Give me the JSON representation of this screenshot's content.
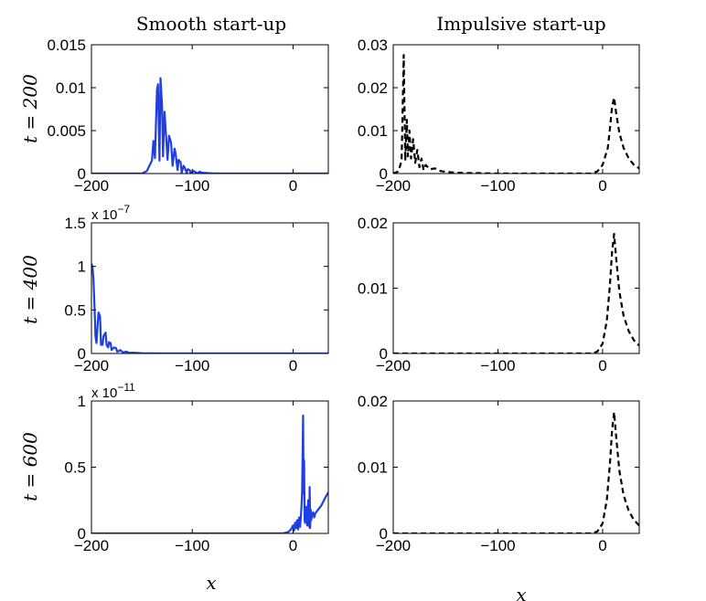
{
  "column_titles": [
    "Smooth start-up",
    "Impulsive start-up"
  ],
  "row_labels": [
    "t = 200",
    "t = 400",
    "t = 600"
  ],
  "x_axis_label": "x",
  "chart_data": [
    {
      "type": "line",
      "row": 0,
      "col": 0,
      "xlim": [
        -200,
        35
      ],
      "ylim": [
        0,
        0.015
      ],
      "yticks": [
        0,
        0.005,
        0.01,
        0.015
      ],
      "ytick_labels": [
        "0",
        "0.005",
        "0.01",
        "0.015"
      ],
      "xticks": [
        -200,
        -100,
        0
      ],
      "xtick_labels": [
        "−200",
        "−100",
        "0"
      ],
      "exponent": "",
      "series": [
        {
          "color": "#1f3fe0",
          "style": "solid",
          "x": [
            -200,
            -150,
            -145,
            -140,
            -138.5,
            -137,
            -135,
            -134,
            -132.5,
            -131.5,
            -130,
            -129,
            -127.5,
            -126.5,
            -124.5,
            -123,
            -121,
            -119.5,
            -117.5,
            -116.5,
            -114.5,
            -113.5,
            -111.5,
            -110.5,
            -108.5,
            -107.5,
            -105.5,
            -104.5,
            -102.5,
            -101.5,
            -99,
            -97,
            -95,
            -93,
            -90,
            -85,
            -80,
            -75,
            -70,
            0,
            35
          ],
          "y": [
            0,
            0,
            0.0003,
            0.0015,
            0.0038,
            0.0018,
            0.0097,
            0.0104,
            0.0015,
            0.0111,
            0.008,
            0.002,
            0.0072,
            0.0054,
            0.0016,
            0.0044,
            0.0036,
            0.0009,
            0.0029,
            0.0023,
            0.0004,
            0.0016,
            0.0013,
            0.0001,
            0.0009,
            0.0007,
            0.0001,
            0.0005,
            0.0004,
            0.0,
            0.0003,
            0.0002,
            0.0,
            0.0002,
            0.0001,
            5e-05,
            2e-05,
            1e-05,
            0,
            0,
            0
          ]
        }
      ]
    },
    {
      "type": "line",
      "row": 0,
      "col": 1,
      "xlim": [
        -200,
        35
      ],
      "ylim": [
        0,
        0.03
      ],
      "yticks": [
        0,
        0.01,
        0.02,
        0.03
      ],
      "ytick_labels": [
        "0",
        "0.01",
        "0.02",
        "0.03"
      ],
      "xticks": [
        -200,
        -100,
        0
      ],
      "xtick_labels": [
        "−200",
        "−100",
        "0"
      ],
      "exponent": "",
      "series": [
        {
          "color": "#000000",
          "style": "dashed",
          "x": [
            -200,
            -195,
            -192,
            -190,
            -188.5,
            -187,
            -186,
            -184.5,
            -183,
            -181,
            -179,
            -177,
            -175,
            -173,
            -171,
            -169,
            -165,
            -160,
            -155,
            -150,
            -145,
            -140,
            -130,
            -120,
            -100,
            -50,
            -10,
            -5,
            0,
            5,
            7,
            9,
            11,
            13,
            16,
            20,
            25,
            30,
            35
          ],
          "y": [
            0,
            0.0005,
            0.003,
            0.0276,
            0.003,
            0.0125,
            0.004,
            0.01,
            0.0035,
            0.008,
            0.0025,
            0.0055,
            0.0015,
            0.0035,
            0.0008,
            0.002,
            0.001,
            0.0012,
            0.0006,
            0.0004,
            0.0003,
            0.0002,
            0.0001,
            0.0001,
            0,
            0,
            0,
            0.0005,
            0.002,
            0.006,
            0.0105,
            0.0155,
            0.0177,
            0.014,
            0.0095,
            0.006,
            0.0035,
            0.002,
            0.0012
          ]
        }
      ]
    },
    {
      "type": "line",
      "row": 1,
      "col": 0,
      "xlim": [
        -200,
        35
      ],
      "ylim": [
        0,
        1.5
      ],
      "yticks": [
        0,
        0.5,
        1,
        1.5
      ],
      "ytick_labels": [
        "0",
        "0.5",
        "1",
        "1.5"
      ],
      "xticks": [
        -200,
        -100,
        0
      ],
      "xtick_labels": [
        "−200",
        "−100",
        "0"
      ],
      "exponent": "x 10",
      "exponent_power": "−7",
      "series": [
        {
          "color": "#1f3fe0",
          "style": "solid",
          "x": [
            -200,
            -199,
            -198,
            -197,
            -196,
            -195,
            -194,
            -193,
            -191.5,
            -190.5,
            -189,
            -188,
            -186,
            -185,
            -183.5,
            -182.5,
            -181,
            -180,
            -178.5,
            -177.5,
            -175.5,
            -174.5,
            -172.5,
            -171.5,
            -169.5,
            -168.5,
            -166,
            -165,
            -162,
            -160,
            -150,
            -140,
            -130,
            0,
            35
          ],
          "y": [
            1.03,
            1.0,
            0.85,
            0.55,
            0.2,
            0.12,
            0.3,
            0.47,
            0.43,
            0.1,
            0.1,
            0.2,
            0.24,
            0.1,
            0.07,
            0.13,
            0.12,
            0.04,
            0.06,
            0.07,
            0.06,
            0.02,
            0.03,
            0.04,
            0.02,
            0.01,
            0.02,
            0.02,
            0.005,
            0.01,
            0.003,
            0.002,
            0,
            0,
            0
          ]
        }
      ]
    },
    {
      "type": "line",
      "row": 1,
      "col": 1,
      "xlim": [
        -200,
        35
      ],
      "ylim": [
        0,
        0.02
      ],
      "yticks": [
        0,
        0.01,
        0.02
      ],
      "ytick_labels": [
        "0",
        "0.01",
        "0.02"
      ],
      "xticks": [
        -200,
        -100,
        0
      ],
      "xtick_labels": [
        "−200",
        "−100",
        "0"
      ],
      "exponent": "",
      "series": [
        {
          "color": "#000000",
          "style": "dashed",
          "x": [
            -200,
            -100,
            -10,
            -5,
            0,
            4,
            7,
            9,
            11,
            13,
            16,
            20,
            25,
            30,
            35
          ],
          "y": [
            0,
            0,
            0,
            0.0003,
            0.0015,
            0.005,
            0.0105,
            0.0155,
            0.0183,
            0.0145,
            0.0095,
            0.0058,
            0.0034,
            0.002,
            0.0012
          ]
        }
      ]
    },
    {
      "type": "line",
      "row": 2,
      "col": 0,
      "xlim": [
        -200,
        35
      ],
      "ylim": [
        0,
        1
      ],
      "yticks": [
        0,
        0.5,
        1
      ],
      "ytick_labels": [
        "0",
        "0.5",
        "1"
      ],
      "xticks": [
        -200,
        -100,
        0
      ],
      "xtick_labels": [
        "−200",
        "−100",
        "0"
      ],
      "exponent": "x 10",
      "exponent_power": "−11",
      "series": [
        {
          "color": "#1f3fe0",
          "style": "solid",
          "x": [
            -200,
            -10,
            -5,
            -2,
            0,
            1,
            2,
            3,
            4,
            5,
            6,
            7,
            8,
            9,
            10,
            10.5,
            11,
            11.5,
            12,
            13,
            14,
            15,
            16,
            16.5,
            17,
            17.5,
            18,
            19,
            20,
            21,
            22,
            24,
            26,
            28,
            30,
            32,
            35
          ],
          "y": [
            0,
            0,
            0.01,
            0.03,
            0.06,
            0.02,
            0.08,
            0.04,
            0.1,
            0.03,
            0.12,
            0.05,
            0.15,
            0.3,
            0.89,
            0.3,
            0.55,
            0.1,
            0.08,
            0.2,
            0.06,
            0.25,
            0.05,
            0.35,
            0.04,
            0.18,
            0.1,
            0.14,
            0.16,
            0.12,
            0.15,
            0.17,
            0.19,
            0.21,
            0.24,
            0.27,
            0.31
          ]
        }
      ]
    },
    {
      "type": "line",
      "row": 2,
      "col": 1,
      "xlim": [
        -200,
        35
      ],
      "ylim": [
        0,
        0.02
      ],
      "yticks": [
        0,
        0.01,
        0.02
      ],
      "ytick_labels": [
        "0",
        "0.01",
        "0.02"
      ],
      "xticks": [
        -200,
        -100,
        0
      ],
      "xtick_labels": [
        "−200",
        "−100",
        "0"
      ],
      "exponent": "",
      "series": [
        {
          "color": "#000000",
          "style": "dashed",
          "x": [
            -200,
            -100,
            -10,
            -5,
            0,
            4,
            7,
            9,
            11,
            13,
            16,
            20,
            25,
            30,
            35
          ],
          "y": [
            0,
            0,
            0,
            0.0003,
            0.0015,
            0.005,
            0.0105,
            0.0155,
            0.0183,
            0.0145,
            0.0095,
            0.0058,
            0.0034,
            0.002,
            0.0012
          ]
        }
      ]
    }
  ]
}
